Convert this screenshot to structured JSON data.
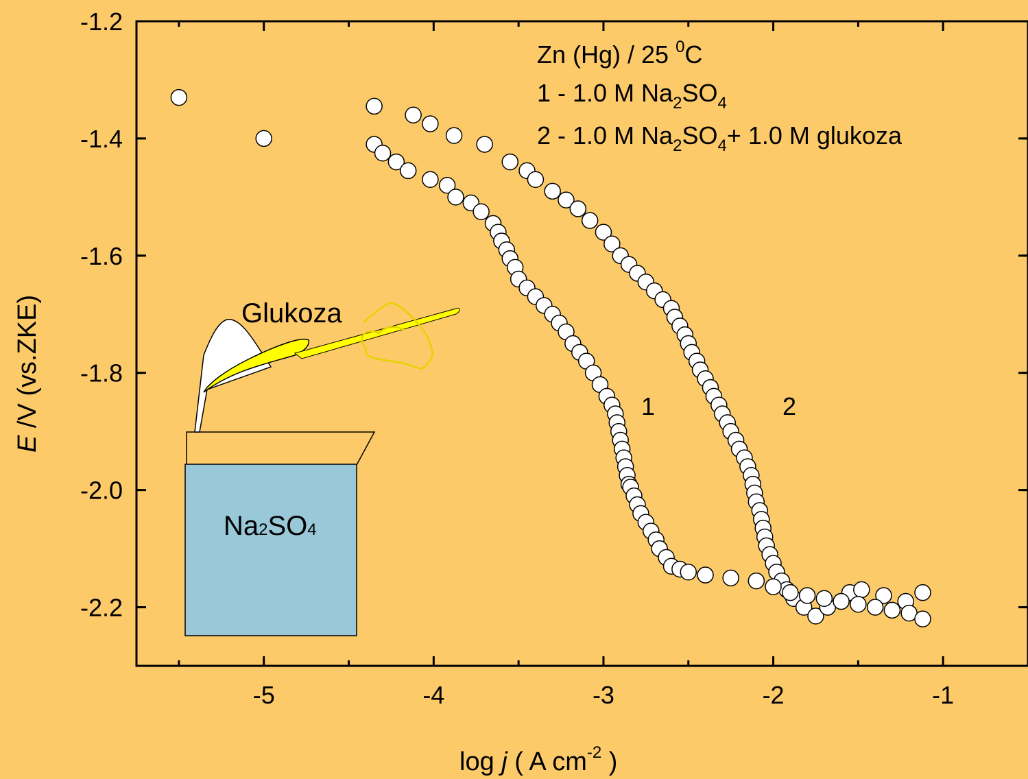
{
  "colors": {
    "background": "#FDCA6A",
    "axis": "#000000",
    "marker_fill": "#FFFFFF",
    "marker_stroke": "#000000",
    "spoon": "#FFFF00",
    "beaker_liquid": "#99C8D9"
  },
  "illustration": {
    "glukoza_label": "Glukoza",
    "beaker_label_na": "Na",
    "beaker_label_2": "2",
    "beaker_label_so": "SO",
    "beaker_label_4": "4"
  },
  "chart_data": {
    "type": "scatter",
    "xlabel_prefix": "log ",
    "xlabel_var": "j",
    "xlabel_unit_open": " (  A cm",
    "xlabel_unit_exp": "-2",
    "xlabel_unit_close": " )",
    "ylabel_var": "E",
    "ylabel_rest": " /V  (vs.ZKE)",
    "xlim": [
      -5.75,
      -0.5
    ],
    "ylim": [
      -2.3,
      -1.2
    ],
    "xticks": [
      -5,
      -4,
      -3,
      -2,
      -1
    ],
    "xtick_labels": [
      "-5",
      "-4",
      "-3",
      "-2",
      "-1"
    ],
    "yticks": [
      -1.2,
      -1.4,
      -1.6,
      -1.8,
      -2.0,
      -2.2
    ],
    "ytick_labels": [
      "-1.2",
      "-1.4",
      "-1.6",
      "-1.8",
      "-2.0",
      "-2.2"
    ],
    "grid": false,
    "legend": {
      "line1_a": "Zn (Hg) / 25 ",
      "line1_sup": "0",
      "line1_b": "C",
      "line2_a": "1 -  1.0 M Na",
      "line2_s1": "2",
      "line2_b": "SO",
      "line2_s2": "4",
      "line3_a": "2 -  1.0 M Na",
      "line3_s1": "2",
      "line3_b": "SO",
      "line3_s2": "4",
      "line3_c": "+ 1.0 M glukoza"
    },
    "series": [
      {
        "label": "1",
        "x": [
          -5.5,
          -5.0,
          -4.35,
          -4.12,
          -4.02,
          -3.88,
          -3.7,
          -3.55,
          -3.45,
          -3.4,
          -3.3,
          -3.22,
          -3.15,
          -3.08,
          -3.0,
          -2.95,
          -2.9,
          -2.85,
          -2.8,
          -2.75,
          -2.7,
          -2.65,
          -2.6,
          -2.58,
          -2.55,
          -2.52,
          -2.5,
          -2.48,
          -2.45,
          -2.43,
          -2.4,
          -2.37,
          -2.35,
          -2.32,
          -2.3,
          -2.27,
          -2.25,
          -2.22,
          -2.2,
          -2.17,
          -2.15,
          -2.13,
          -2.12,
          -2.11,
          -2.1,
          -2.08,
          -2.07,
          -2.06,
          -2.05,
          -2.04,
          -2.02,
          -2.0,
          -1.98,
          -1.95,
          -1.92,
          -1.88,
          -1.82,
          -1.75,
          -1.68,
          -1.6,
          -1.55,
          -1.48,
          -1.35,
          -1.22,
          -1.12
        ],
        "y": [
          -1.33,
          -1.4,
          -1.345,
          -1.36,
          -1.375,
          -1.395,
          -1.41,
          -1.44,
          -1.455,
          -1.47,
          -1.49,
          -1.505,
          -1.52,
          -1.54,
          -1.56,
          -1.58,
          -1.6,
          -1.615,
          -1.63,
          -1.645,
          -1.66,
          -1.675,
          -1.69,
          -1.705,
          -1.72,
          -1.735,
          -1.75,
          -1.765,
          -1.78,
          -1.795,
          -1.81,
          -1.825,
          -1.84,
          -1.855,
          -1.87,
          -1.885,
          -1.9,
          -1.915,
          -1.93,
          -1.945,
          -1.96,
          -1.975,
          -1.99,
          -2.005,
          -2.02,
          -2.035,
          -2.05,
          -2.065,
          -2.08,
          -2.095,
          -2.11,
          -2.125,
          -2.14,
          -2.155,
          -2.17,
          -2.185,
          -2.2,
          -2.215,
          -2.2,
          -2.19,
          -2.175,
          -2.17,
          -2.18,
          -2.19,
          -2.175
        ]
      },
      {
        "label": "2",
        "x": [
          -4.35,
          -4.3,
          -4.22,
          -4.15,
          -4.02,
          -3.92,
          -3.87,
          -3.78,
          -3.72,
          -3.65,
          -3.62,
          -3.6,
          -3.57,
          -3.55,
          -3.52,
          -3.5,
          -3.45,
          -3.4,
          -3.35,
          -3.3,
          -3.26,
          -3.22,
          -3.18,
          -3.14,
          -3.1,
          -3.06,
          -3.02,
          -2.98,
          -2.95,
          -2.93,
          -2.92,
          -2.91,
          -2.9,
          -2.89,
          -2.88,
          -2.87,
          -2.86,
          -2.85,
          -2.84,
          -2.82,
          -2.8,
          -2.78,
          -2.75,
          -2.72,
          -2.69,
          -2.67,
          -2.63,
          -2.6,
          -2.55,
          -2.5,
          -2.4,
          -2.25,
          -2.1,
          -2.0,
          -1.9,
          -1.8,
          -1.7,
          -1.6,
          -1.5,
          -1.4,
          -1.3,
          -1.2,
          -1.12
        ],
        "y": [
          -1.41,
          -1.425,
          -1.44,
          -1.455,
          -1.47,
          -1.48,
          -1.5,
          -1.51,
          -1.525,
          -1.545,
          -1.56,
          -1.575,
          -1.59,
          -1.605,
          -1.62,
          -1.64,
          -1.655,
          -1.67,
          -1.685,
          -1.7,
          -1.715,
          -1.73,
          -1.75,
          -1.765,
          -1.78,
          -1.8,
          -1.82,
          -1.84,
          -1.855,
          -1.87,
          -1.885,
          -1.9,
          -1.915,
          -1.93,
          -1.945,
          -1.96,
          -1.975,
          -1.99,
          -1.995,
          -2.01,
          -2.025,
          -2.04,
          -2.055,
          -2.07,
          -2.085,
          -2.1,
          -2.115,
          -2.13,
          -2.135,
          -2.14,
          -2.145,
          -2.15,
          -2.155,
          -2.165,
          -2.175,
          -2.18,
          -2.185,
          -2.19,
          -2.195,
          -2.2,
          -2.205,
          -2.21,
          -2.22
        ]
      }
    ]
  }
}
